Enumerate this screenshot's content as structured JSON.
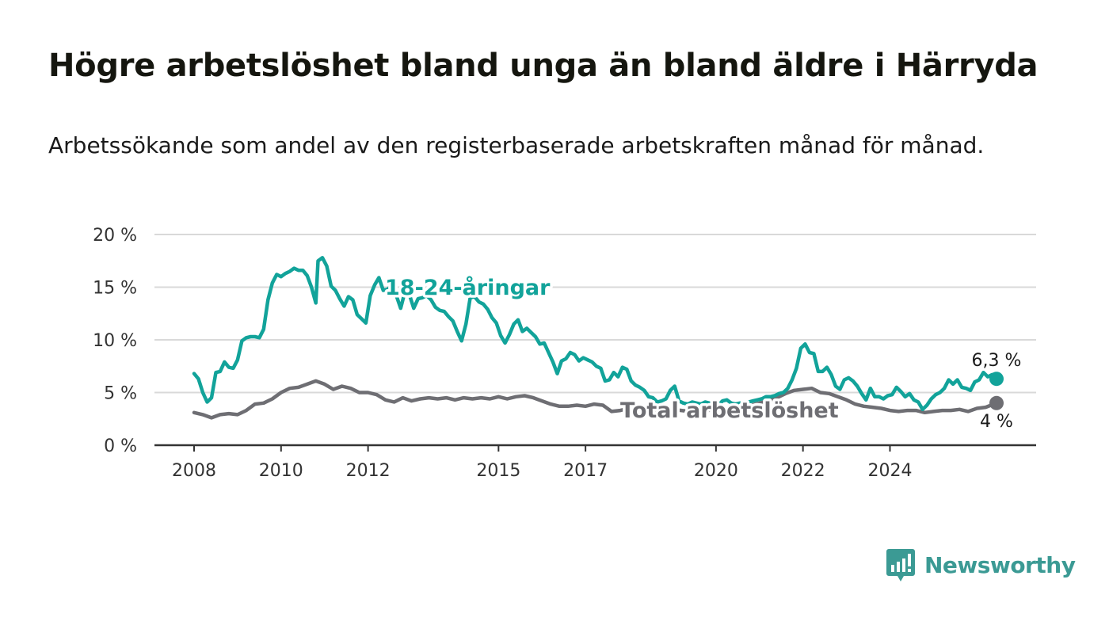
{
  "title": "Högre arbetslöshet bland unga än bland äldre i Härryda",
  "subtitle": "Arbetssökande som andel av den registerbaserade arbetskraften månad för månad.",
  "brand": {
    "name": "Newsworthy",
    "color": "#3b9a94",
    "logo_icon": "bar-chart-speech-bubble-icon"
  },
  "chart_data": {
    "type": "line",
    "title": "Högre arbetslöshet bland unga än bland äldre i Härryda",
    "subtitle": "Arbetssökande som andel av den registerbaserade arbetskraften månad för månad.",
    "xlabel": "",
    "ylabel": "",
    "xlim": [
      2008,
      2026.7
    ],
    "ylim": [
      0,
      20
    ],
    "grid": true,
    "legend": "none (direct labels on lines)",
    "x_ticks": [
      2008,
      2010,
      2012,
      2015,
      2017,
      2020,
      2022,
      2024
    ],
    "x_tick_labels": [
      "2008",
      "2010",
      "2012",
      "2015",
      "2017",
      "2020",
      "2022",
      "2024"
    ],
    "y_ticks": [
      0,
      5,
      10,
      15,
      20
    ],
    "y_tick_labels": [
      "0 %",
      "5 %",
      "10 %",
      "15 %",
      "20 %"
    ],
    "series": [
      {
        "name": "18-24-åringar",
        "color": "#12a39a",
        "label_at": [
          12.0,
          15.0
        ],
        "end_label": "6,3 %",
        "points": [
          [
            2008.0,
            6.8
          ],
          [
            2008.1,
            6.3
          ],
          [
            2008.2,
            5.0
          ],
          [
            2008.3,
            4.1
          ],
          [
            2008.4,
            4.5
          ],
          [
            2008.5,
            6.9
          ],
          [
            2008.6,
            7.0
          ],
          [
            2008.7,
            7.9
          ],
          [
            2008.8,
            7.4
          ],
          [
            2008.9,
            7.3
          ],
          [
            2009.0,
            8.1
          ],
          [
            2009.1,
            9.9
          ],
          [
            2009.2,
            10.2
          ],
          [
            2009.3,
            10.3
          ],
          [
            2009.4,
            10.3
          ],
          [
            2009.5,
            10.2
          ],
          [
            2009.6,
            11.0
          ],
          [
            2009.7,
            13.8
          ],
          [
            2009.8,
            15.4
          ],
          [
            2009.9,
            16.2
          ],
          [
            2010.0,
            16.0
          ],
          [
            2010.1,
            16.3
          ],
          [
            2010.2,
            16.5
          ],
          [
            2010.3,
            16.8
          ],
          [
            2010.4,
            16.6
          ],
          [
            2010.5,
            16.6
          ],
          [
            2010.6,
            16.1
          ],
          [
            2010.7,
            15.0
          ],
          [
            2010.8,
            13.5
          ],
          [
            2010.85,
            17.5
          ],
          [
            2010.95,
            17.8
          ],
          [
            2011.05,
            17.0
          ],
          [
            2011.15,
            15.1
          ],
          [
            2011.25,
            14.7
          ],
          [
            2011.35,
            13.9
          ],
          [
            2011.45,
            13.2
          ],
          [
            2011.55,
            14.1
          ],
          [
            2011.65,
            13.8
          ],
          [
            2011.75,
            12.4
          ],
          [
            2011.85,
            12.0
          ],
          [
            2011.95,
            11.6
          ],
          [
            2012.05,
            14.2
          ],
          [
            2012.15,
            15.2
          ],
          [
            2012.25,
            15.9
          ],
          [
            2012.35,
            14.7
          ],
          [
            2012.45,
            14.8
          ],
          [
            2012.55,
            15.2
          ],
          [
            2012.65,
            14.2
          ],
          [
            2012.75,
            13.0
          ],
          [
            2012.85,
            14.6
          ],
          [
            2012.95,
            14.3
          ],
          [
            2013.05,
            13.0
          ],
          [
            2013.15,
            13.9
          ],
          [
            2013.25,
            14.0
          ],
          [
            2013.35,
            14.2
          ],
          [
            2013.45,
            13.8
          ],
          [
            2013.55,
            13.1
          ],
          [
            2013.65,
            12.8
          ],
          [
            2013.75,
            12.7
          ],
          [
            2013.85,
            12.2
          ],
          [
            2013.95,
            11.8
          ],
          [
            2014.05,
            10.8
          ],
          [
            2014.15,
            9.9
          ],
          [
            2014.25,
            11.5
          ],
          [
            2014.35,
            14.0
          ],
          [
            2014.45,
            14.1
          ],
          [
            2014.55,
            13.6
          ],
          [
            2014.65,
            13.4
          ],
          [
            2014.75,
            12.9
          ],
          [
            2014.85,
            12.1
          ],
          [
            2014.95,
            11.6
          ],
          [
            2015.05,
            10.4
          ],
          [
            2015.15,
            9.7
          ],
          [
            2015.25,
            10.5
          ],
          [
            2015.35,
            11.5
          ],
          [
            2015.45,
            11.9
          ],
          [
            2015.55,
            10.8
          ],
          [
            2015.65,
            11.1
          ],
          [
            2015.75,
            10.7
          ],
          [
            2015.85,
            10.3
          ],
          [
            2015.95,
            9.6
          ],
          [
            2016.05,
            9.7
          ],
          [
            2016.15,
            8.8
          ],
          [
            2016.25,
            7.9
          ],
          [
            2016.35,
            6.8
          ],
          [
            2016.45,
            8.0
          ],
          [
            2016.55,
            8.2
          ],
          [
            2016.65,
            8.8
          ],
          [
            2016.75,
            8.6
          ],
          [
            2016.85,
            8.0
          ],
          [
            2016.95,
            8.3
          ],
          [
            2017.05,
            8.1
          ],
          [
            2017.15,
            7.9
          ],
          [
            2017.25,
            7.5
          ],
          [
            2017.35,
            7.3
          ],
          [
            2017.45,
            6.1
          ],
          [
            2017.55,
            6.2
          ],
          [
            2017.65,
            6.9
          ],
          [
            2017.75,
            6.5
          ],
          [
            2017.85,
            7.4
          ],
          [
            2017.95,
            7.2
          ],
          [
            2018.05,
            6.1
          ],
          [
            2018.15,
            5.7
          ],
          [
            2018.25,
            5.5
          ],
          [
            2018.35,
            5.2
          ],
          [
            2018.45,
            4.6
          ],
          [
            2018.55,
            4.5
          ],
          [
            2018.65,
            4.1
          ],
          [
            2018.75,
            4.2
          ],
          [
            2018.85,
            4.4
          ],
          [
            2018.95,
            5.2
          ],
          [
            2019.05,
            5.6
          ],
          [
            2019.15,
            4.2
          ],
          [
            2019.25,
            4.0
          ],
          [
            2019.35,
            3.9
          ],
          [
            2019.45,
            4.1
          ],
          [
            2019.55,
            4.0
          ],
          [
            2019.65,
            3.9
          ],
          [
            2019.75,
            4.1
          ],
          [
            2019.85,
            4.0
          ],
          [
            2019.95,
            3.6
          ],
          [
            2020.05,
            3.8
          ],
          [
            2020.15,
            4.2
          ],
          [
            2020.25,
            4.3
          ],
          [
            2020.35,
            4.0
          ],
          [
            2020.45,
            3.9
          ],
          [
            2020.55,
            4.0
          ],
          [
            2020.65,
            4.0
          ],
          [
            2020.75,
            4.1
          ],
          [
            2020.85,
            4.2
          ],
          [
            2020.95,
            4.3
          ],
          [
            2021.05,
            4.4
          ],
          [
            2021.15,
            4.6
          ],
          [
            2021.25,
            4.6
          ],
          [
            2021.35,
            4.7
          ],
          [
            2021.45,
            4.9
          ],
          [
            2021.55,
            5.0
          ],
          [
            2021.65,
            5.4
          ],
          [
            2021.75,
            6.2
          ],
          [
            2021.85,
            7.3
          ],
          [
            2021.95,
            9.2
          ],
          [
            2022.05,
            9.6
          ],
          [
            2022.15,
            8.8
          ],
          [
            2022.25,
            8.7
          ],
          [
            2022.35,
            7.0
          ],
          [
            2022.45,
            7.0
          ],
          [
            2022.55,
            7.4
          ],
          [
            2022.65,
            6.7
          ],
          [
            2022.75,
            5.6
          ],
          [
            2022.85,
            5.3
          ],
          [
            2022.95,
            6.2
          ],
          [
            2023.05,
            6.4
          ],
          [
            2023.15,
            6.1
          ],
          [
            2023.25,
            5.6
          ],
          [
            2023.35,
            4.9
          ],
          [
            2023.45,
            4.3
          ],
          [
            2023.55,
            5.4
          ],
          [
            2023.65,
            4.6
          ],
          [
            2023.75,
            4.6
          ],
          [
            2023.85,
            4.4
          ],
          [
            2023.95,
            4.7
          ],
          [
            2024.05,
            4.8
          ],
          [
            2024.15,
            5.5
          ],
          [
            2024.25,
            5.1
          ],
          [
            2024.35,
            4.6
          ],
          [
            2024.45,
            4.9
          ],
          [
            2024.55,
            4.3
          ],
          [
            2024.65,
            4.1
          ],
          [
            2024.75,
            3.4
          ],
          [
            2024.85,
            3.8
          ],
          [
            2024.95,
            4.4
          ],
          [
            2025.05,
            4.8
          ],
          [
            2025.15,
            5.0
          ],
          [
            2025.25,
            5.4
          ],
          [
            2025.35,
            6.2
          ],
          [
            2025.45,
            5.8
          ],
          [
            2025.55,
            6.2
          ],
          [
            2025.65,
            5.5
          ],
          [
            2025.75,
            5.4
          ],
          [
            2025.85,
            5.2
          ],
          [
            2025.95,
            6.0
          ],
          [
            2026.05,
            6.2
          ],
          [
            2026.15,
            6.9
          ],
          [
            2026.25,
            6.5
          ],
          [
            2026.35,
            6.7
          ],
          [
            2026.45,
            6.3
          ]
        ]
      },
      {
        "name": "Total arbetslöshet",
        "color": "#6e6e73",
        "label_at": [
          2019.0,
          3.4
        ],
        "end_label": "4 %",
        "points": [
          [
            2008.0,
            3.1
          ],
          [
            2008.2,
            2.9
          ],
          [
            2008.4,
            2.6
          ],
          [
            2008.6,
            2.9
          ],
          [
            2008.8,
            3.0
          ],
          [
            2009.0,
            2.9
          ],
          [
            2009.2,
            3.3
          ],
          [
            2009.4,
            3.9
          ],
          [
            2009.6,
            4.0
          ],
          [
            2009.8,
            4.4
          ],
          [
            2010.0,
            5.0
          ],
          [
            2010.2,
            5.4
          ],
          [
            2010.4,
            5.5
          ],
          [
            2010.6,
            5.8
          ],
          [
            2010.8,
            6.1
          ],
          [
            2011.0,
            5.8
          ],
          [
            2011.2,
            5.3
          ],
          [
            2011.4,
            5.6
          ],
          [
            2011.6,
            5.4
          ],
          [
            2011.8,
            5.0
          ],
          [
            2012.0,
            5.0
          ],
          [
            2012.2,
            4.8
          ],
          [
            2012.4,
            4.3
          ],
          [
            2012.6,
            4.1
          ],
          [
            2012.8,
            4.5
          ],
          [
            2013.0,
            4.2
          ],
          [
            2013.2,
            4.4
          ],
          [
            2013.4,
            4.5
          ],
          [
            2013.6,
            4.4
          ],
          [
            2013.8,
            4.5
          ],
          [
            2014.0,
            4.3
          ],
          [
            2014.2,
            4.5
          ],
          [
            2014.4,
            4.4
          ],
          [
            2014.6,
            4.5
          ],
          [
            2014.8,
            4.4
          ],
          [
            2015.0,
            4.6
          ],
          [
            2015.2,
            4.4
          ],
          [
            2015.4,
            4.6
          ],
          [
            2015.6,
            4.7
          ],
          [
            2015.8,
            4.5
          ],
          [
            2016.0,
            4.2
          ],
          [
            2016.2,
            3.9
          ],
          [
            2016.4,
            3.7
          ],
          [
            2016.6,
            3.7
          ],
          [
            2016.8,
            3.8
          ],
          [
            2017.0,
            3.7
          ],
          [
            2017.2,
            3.9
          ],
          [
            2017.4,
            3.8
          ],
          [
            2017.6,
            3.2
          ],
          [
            2017.8,
            3.3
          ],
          [
            2018.0,
            3.5
          ],
          [
            2018.2,
            3.5
          ],
          [
            2018.4,
            3.4
          ],
          [
            2018.6,
            3.3
          ],
          [
            2018.8,
            3.3
          ],
          [
            2019.0,
            3.4
          ],
          [
            2019.2,
            3.3
          ],
          [
            2019.4,
            3.2
          ],
          [
            2019.6,
            3.4
          ],
          [
            2019.8,
            3.3
          ],
          [
            2020.0,
            3.4
          ],
          [
            2020.2,
            3.5
          ],
          [
            2020.4,
            3.4
          ],
          [
            2020.6,
            3.6
          ],
          [
            2020.8,
            3.8
          ],
          [
            2021.0,
            4.0
          ],
          [
            2021.2,
            4.2
          ],
          [
            2021.4,
            4.5
          ],
          [
            2021.6,
            4.9
          ],
          [
            2021.8,
            5.2
          ],
          [
            2022.0,
            5.3
          ],
          [
            2022.2,
            5.4
          ],
          [
            2022.4,
            5.0
          ],
          [
            2022.6,
            4.9
          ],
          [
            2022.8,
            4.6
          ],
          [
            2023.0,
            4.3
          ],
          [
            2023.2,
            3.9
          ],
          [
            2023.4,
            3.7
          ],
          [
            2023.6,
            3.6
          ],
          [
            2023.8,
            3.5
          ],
          [
            2024.0,
            3.3
          ],
          [
            2024.2,
            3.2
          ],
          [
            2024.4,
            3.3
          ],
          [
            2024.6,
            3.3
          ],
          [
            2024.8,
            3.1
          ],
          [
            2025.0,
            3.2
          ],
          [
            2025.2,
            3.3
          ],
          [
            2025.4,
            3.3
          ],
          [
            2025.6,
            3.4
          ],
          [
            2025.8,
            3.2
          ],
          [
            2026.0,
            3.5
          ],
          [
            2026.2,
            3.6
          ],
          [
            2026.45,
            4.0
          ]
        ]
      }
    ]
  }
}
